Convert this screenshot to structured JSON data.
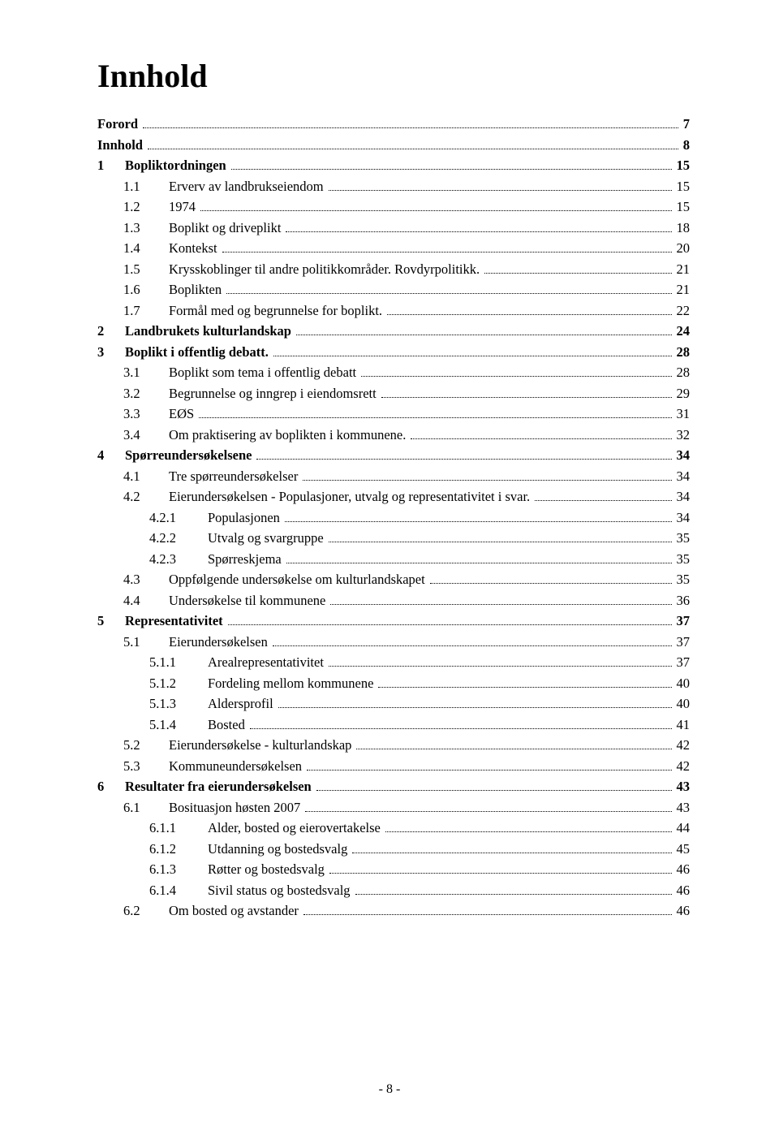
{
  "title": "Innhold",
  "page_indicator": "- 8 -",
  "text_color": "#000000",
  "background_color": "#ffffff",
  "font_family": "Times New Roman",
  "title_fontsize": 40,
  "body_fontsize": 16.5,
  "entries": [
    {
      "indent": "i0n",
      "bold": true,
      "num": "",
      "label": "Forord",
      "page": "7",
      "gap": false
    },
    {
      "indent": "i0n",
      "bold": true,
      "num": "",
      "label": "Innhold",
      "page": "8",
      "gap": true
    },
    {
      "indent": "i0",
      "bold": true,
      "num": "1",
      "label": "Bopliktordningen",
      "page": "15",
      "gap": true
    },
    {
      "indent": "i1",
      "bold": false,
      "num": "1.1",
      "label": "Erverv av landbrukseiendom",
      "page": "15",
      "gap": true
    },
    {
      "indent": "i1",
      "bold": false,
      "num": "1.2",
      "label": "1974",
      "page": "15",
      "gap": true
    },
    {
      "indent": "i1",
      "bold": false,
      "num": "1.3",
      "label": "Boplikt og driveplikt",
      "page": "18",
      "gap": true
    },
    {
      "indent": "i1",
      "bold": false,
      "num": "1.4",
      "label": "Kontekst",
      "page": "20",
      "gap": true
    },
    {
      "indent": "i1",
      "bold": false,
      "num": "1.5",
      "label": "Krysskoblinger til andre politikkområder. Rovdyrpolitikk.",
      "page": "21",
      "gap": true
    },
    {
      "indent": "i1",
      "bold": false,
      "num": "1.6",
      "label": "Boplikten",
      "page": "21",
      "gap": true
    },
    {
      "indent": "i1",
      "bold": false,
      "num": "1.7",
      "label": "Formål med og begrunnelse for boplikt.",
      "page": "22",
      "gap": true
    },
    {
      "indent": "i0",
      "bold": true,
      "num": "2",
      "label": "Landbrukets kulturlandskap",
      "page": "24",
      "gap": true
    },
    {
      "indent": "i0",
      "bold": true,
      "num": "3",
      "label": "Boplikt i offentlig debatt.",
      "page": "28",
      "gap": true
    },
    {
      "indent": "i1",
      "bold": false,
      "num": "3.1",
      "label": "Boplikt som tema i offentlig debatt",
      "page": "28",
      "gap": true
    },
    {
      "indent": "i1",
      "bold": false,
      "num": "3.2",
      "label": "Begrunnelse og inngrep i eiendomsrett",
      "page": "29",
      "gap": true
    },
    {
      "indent": "i1",
      "bold": false,
      "num": "3.3",
      "label": "EØS",
      "page": "31",
      "gap": true
    },
    {
      "indent": "i1",
      "bold": false,
      "num": "3.4",
      "label": "Om praktisering av boplikten i kommunene.",
      "page": "32",
      "gap": true
    },
    {
      "indent": "i0",
      "bold": true,
      "num": "4",
      "label": "Spørreundersøkelsene",
      "page": "34",
      "gap": true
    },
    {
      "indent": "i1",
      "bold": false,
      "num": "4.1",
      "label": "Tre spørreundersøkelser",
      "page": "34",
      "gap": true
    },
    {
      "indent": "i1",
      "bold": false,
      "num": "4.2",
      "label": "Eierundersøkelsen - Populasjoner, utvalg og representativitet i svar.",
      "page": "34",
      "gap": true
    },
    {
      "indent": "i2",
      "bold": false,
      "num": "4.2.1",
      "label": "Populasjonen",
      "page": "34",
      "gap": false
    },
    {
      "indent": "i2",
      "bold": false,
      "num": "4.2.2",
      "label": "Utvalg og svargruppe",
      "page": "35",
      "gap": false
    },
    {
      "indent": "i2",
      "bold": false,
      "num": "4.2.3",
      "label": "Spørreskjema",
      "page": "35",
      "gap": false
    },
    {
      "indent": "i1",
      "bold": false,
      "num": "4.3",
      "label": "Oppfølgende undersøkelse om kulturlandskapet",
      "page": "35",
      "gap": true
    },
    {
      "indent": "i1",
      "bold": false,
      "num": "4.4",
      "label": "Undersøkelse til kommunene",
      "page": "36",
      "gap": true
    },
    {
      "indent": "i0",
      "bold": true,
      "num": "5",
      "label": "Representativitet",
      "page": "37",
      "gap": true
    },
    {
      "indent": "i1",
      "bold": false,
      "num": "5.1",
      "label": "Eierundersøkelsen",
      "page": "37",
      "gap": true
    },
    {
      "indent": "i2",
      "bold": false,
      "num": "5.1.1",
      "label": "Arealrepresentativitet",
      "page": "37",
      "gap": false
    },
    {
      "indent": "i2",
      "bold": false,
      "num": "5.1.2",
      "label": "Fordeling mellom kommunene",
      "page": "40",
      "gap": false
    },
    {
      "indent": "i2",
      "bold": false,
      "num": "5.1.3",
      "label": "Aldersprofil",
      "page": "40",
      "gap": false
    },
    {
      "indent": "i2",
      "bold": false,
      "num": "5.1.4",
      "label": "Bosted",
      "page": "41",
      "gap": false
    },
    {
      "indent": "i1",
      "bold": false,
      "num": "5.2",
      "label": "Eierundersøkelse - kulturlandskap",
      "page": "42",
      "gap": true
    },
    {
      "indent": "i1",
      "bold": false,
      "num": "5.3",
      "label": "Kommuneundersøkelsen",
      "page": "42",
      "gap": true
    },
    {
      "indent": "i0",
      "bold": true,
      "num": "6",
      "label": "Resultater fra eierundersøkelsen",
      "page": "43",
      "gap": true
    },
    {
      "indent": "i1",
      "bold": false,
      "num": "6.1",
      "label": "Bosituasjon høsten 2007",
      "page": "43",
      "gap": true
    },
    {
      "indent": "i2",
      "bold": false,
      "num": "6.1.1",
      "label": "Alder, bosted og eierovertakelse",
      "page": "44",
      "gap": false
    },
    {
      "indent": "i2",
      "bold": false,
      "num": "6.1.2",
      "label": "Utdanning og bostedsvalg",
      "page": "45",
      "gap": false
    },
    {
      "indent": "i2",
      "bold": false,
      "num": "6.1.3",
      "label": "Røtter og bostedsvalg",
      "page": "46",
      "gap": false
    },
    {
      "indent": "i2",
      "bold": false,
      "num": "6.1.4",
      "label": "Sivil status og bostedsvalg",
      "page": "46",
      "gap": false
    },
    {
      "indent": "i1",
      "bold": false,
      "num": "6.2",
      "label": "Om bosted og avstander",
      "page": "46",
      "gap": true
    }
  ]
}
